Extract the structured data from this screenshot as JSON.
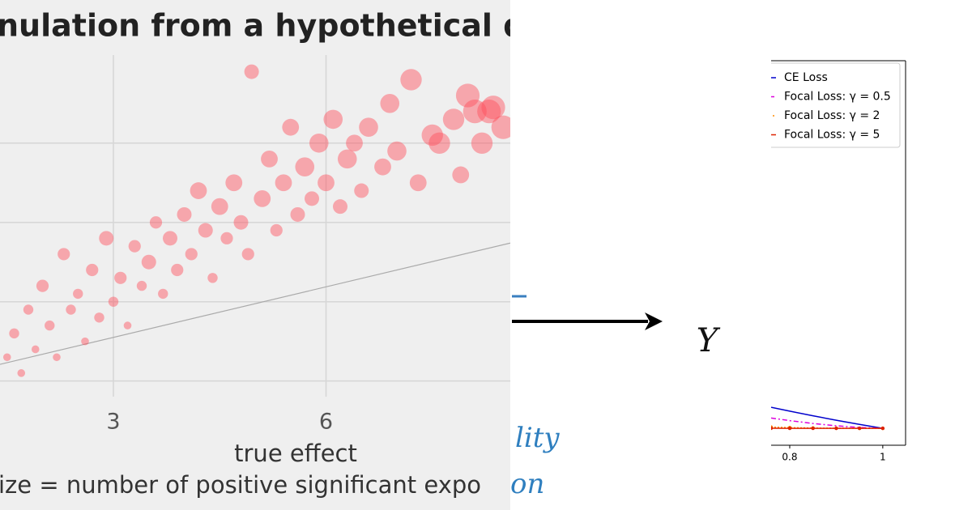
{
  "chart_data": [
    {
      "type": "scatter",
      "title": "nulation from a hypothetical dist",
      "x_label": "true effect",
      "caption": "ize = number of positive significant expo",
      "color": "#ff4d5a",
      "xlim": [
        1.4,
        8.6
      ],
      "ylim": [
        0.19,
        5.09
      ],
      "xticks": [
        3,
        6
      ],
      "yticks": [
        1,
        2,
        3,
        4
      ],
      "grid": true,
      "reference_line": {
        "x": [
          1.4,
          8.6
        ],
        "y": [
          1.21,
          2.74
        ]
      },
      "x": [
        1.5,
        1.6,
        1.7,
        1.8,
        1.9,
        2.0,
        2.1,
        2.2,
        2.3,
        2.4,
        2.5,
        2.6,
        2.7,
        2.8,
        2.9,
        3.0,
        3.1,
        3.2,
        3.3,
        3.4,
        3.5,
        3.6,
        3.7,
        3.8,
        3.9,
        4.0,
        4.1,
        4.2,
        4.3,
        4.4,
        4.5,
        4.6,
        4.7,
        4.8,
        4.9,
        4.95,
        5.1,
        5.2,
        5.3,
        5.4,
        5.5,
        5.6,
        5.7,
        5.8,
        5.9,
        6.0,
        6.1,
        6.2,
        6.3,
        6.4,
        6.5,
        6.6,
        6.8,
        6.9,
        7.0,
        7.2,
        7.3,
        7.5,
        7.6,
        7.8,
        7.9,
        8.0,
        8.1,
        8.2,
        8.3,
        8.36,
        8.5
      ],
      "y": [
        1.3,
        1.6,
        1.1,
        1.9,
        1.4,
        2.2,
        1.7,
        1.3,
        2.6,
        1.9,
        2.1,
        1.5,
        2.4,
        1.8,
        2.8,
        2.0,
        2.3,
        1.7,
        2.7,
        2.2,
        2.5,
        3.0,
        2.1,
        2.8,
        2.4,
        3.1,
        2.6,
        3.4,
        2.9,
        2.3,
        3.2,
        2.8,
        3.5,
        3.0,
        2.6,
        4.9,
        3.3,
        3.8,
        2.9,
        3.5,
        4.2,
        3.1,
        3.7,
        3.3,
        4.0,
        3.5,
        4.3,
        3.2,
        3.8,
        4.0,
        3.4,
        4.2,
        3.7,
        4.5,
        3.9,
        4.8,
        3.5,
        4.1,
        4.0,
        4.3,
        3.6,
        4.6,
        4.4,
        4.0,
        4.4,
        4.45,
        4.2
      ],
      "sizes": [
        2,
        3,
        2,
        3,
        2,
        4,
        3,
        2,
        4,
        3,
        3,
        2,
        4,
        3,
        5,
        3,
        4,
        2,
        4,
        3,
        5,
        4,
        3,
        5,
        4,
        5,
        4,
        6,
        5,
        3,
        6,
        4,
        6,
        5,
        4,
        5,
        6,
        6,
        4,
        6,
        6,
        5,
        7,
        5,
        7,
        6,
        7,
        5,
        7,
        6,
        5,
        7,
        6,
        7,
        7,
        8,
        6,
        8,
        8,
        8,
        6,
        9,
        9,
        8,
        9,
        9,
        9
      ]
    },
    {
      "type": "line",
      "legend": "upper right",
      "x": [
        0.76,
        0.8,
        0.85,
        0.9,
        0.95,
        1.0
      ],
      "xlim": [
        0.76,
        1.049
      ],
      "ylim": [
        -0.22,
        4.78
      ],
      "xticks": [
        0.8,
        1.0
      ],
      "series": [
        {
          "name": "CE Loss",
          "color": "#0000cc",
          "dash": "none",
          "values": [
            0.274,
            0.223,
            0.163,
            0.105,
            0.051,
            0
          ]
        },
        {
          "name": "Focal Loss: γ = 0.5",
          "color": "#dd00dd",
          "dash": "6 3 2 3",
          "values": [
            0.134,
            0.1,
            0.063,
            0.033,
            0.011,
            0
          ]
        },
        {
          "name": "Focal Loss: γ = 2",
          "color": "#ff8c00",
          "dash": "2 2",
          "values": [
            0.016,
            0.009,
            0.004,
            0.001,
            0,
            0
          ]
        },
        {
          "name": "Focal Loss: γ = 5",
          "color": "#dd2200",
          "dash": "none",
          "values": [
            0.001,
            0.0,
            0.0,
            0.0,
            0,
            0
          ]
        }
      ]
    }
  ],
  "diagram": {
    "output": "Y",
    "text_1": "lity",
    "text_2": "on"
  }
}
